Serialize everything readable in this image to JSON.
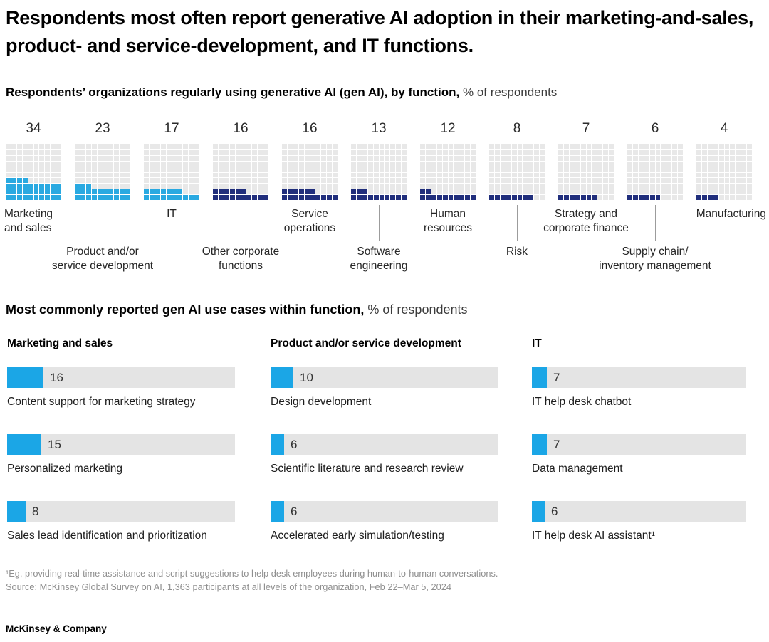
{
  "title": "Respondents most often report generative AI adoption in their marketing-and-sales, product- and service-development, and IT functions.",
  "colors": {
    "cyan": "#29a9e1",
    "navy": "#202e7c",
    "bar_fill": "#1ba6e6",
    "empty_cell": "#e8e8e8",
    "bar_track": "#e4e4e4",
    "footnote_grey": "#8f8f8f"
  },
  "function_chart": {
    "heading_bold": "Respondents’ organizations regularly using generative AI (gen AI), by function,",
    "heading_light": " % of respondents",
    "items": [
      {
        "label": "Marketing and sales",
        "label_lines": [
          "Marketing",
          "and sales"
        ],
        "value": 34,
        "color": "cyan",
        "tier": 1
      },
      {
        "label": "Product and/or service development",
        "label_lines": [
          "Product and/or",
          "service development"
        ],
        "value": 23,
        "color": "cyan",
        "tier": 2
      },
      {
        "label": "IT",
        "label_lines": [
          "IT"
        ],
        "value": 17,
        "color": "cyan",
        "tier": 1
      },
      {
        "label": "Other corporate functions",
        "label_lines": [
          "Other corporate",
          "functions"
        ],
        "value": 16,
        "color": "navy",
        "tier": 2
      },
      {
        "label": "Service operations",
        "label_lines": [
          "Service",
          "operations"
        ],
        "value": 16,
        "color": "navy",
        "tier": 1
      },
      {
        "label": "Software engineering",
        "label_lines": [
          "Software",
          "engineering"
        ],
        "value": 13,
        "color": "navy",
        "tier": 2
      },
      {
        "label": "Human resources",
        "label_lines": [
          "Human",
          "resources"
        ],
        "value": 12,
        "color": "navy",
        "tier": 1
      },
      {
        "label": "Risk",
        "label_lines": [
          "Risk"
        ],
        "value": 8,
        "color": "navy",
        "tier": 2
      },
      {
        "label": "Strategy and corporate finance",
        "label_lines": [
          "Strategy and",
          "corporate finance"
        ],
        "value": 7,
        "color": "navy",
        "tier": 1
      },
      {
        "label": "Supply chain/ inventory management",
        "label_lines": [
          "Supply chain/",
          "inventory management"
        ],
        "value": 6,
        "color": "navy",
        "tier": 2
      },
      {
        "label": "Manufacturing",
        "label_lines": [
          "Manufacturing"
        ],
        "value": 4,
        "color": "navy",
        "tier": 1
      }
    ]
  },
  "use_case_section": {
    "heading_bold": "Most commonly reported gen AI use cases within function,",
    "heading_light": " % of respondents",
    "columns": [
      {
        "header": "Marketing and sales",
        "bars": [
          {
            "label": "Content support for marketing strategy",
            "value": 16
          },
          {
            "label": "Personalized marketing",
            "value": 15
          },
          {
            "label": "Sales lead identification and prioritization",
            "value": 8
          }
        ]
      },
      {
        "header": "Product and/or service development",
        "bars": [
          {
            "label": "Design development",
            "value": 10
          },
          {
            "label": "Scientific literature and research review",
            "value": 6
          },
          {
            "label": "Accelerated early simulation/testing",
            "value": 6
          }
        ]
      },
      {
        "header": "IT",
        "bars": [
          {
            "label": "IT help desk chatbot",
            "value": 7
          },
          {
            "label": "Data management",
            "value": 7
          },
          {
            "label": "IT help desk AI assistant¹",
            "value": 6
          }
        ]
      }
    ]
  },
  "footnotes": [
    "¹Eg, providing real-time assistance and script suggestions to help desk employees during human-to-human conversations.",
    "Source: McKinsey Global Survey on AI, 1,363 participants at all levels of the organization, Feb 22–Mar 5, 2024"
  ],
  "footer": "McKinsey & Company",
  "chart_data": [
    {
      "type": "waffle",
      "note": "unit chart, one 10x10 grid per category, each small square = 1% of respondents, filled bottom-up left-to-right",
      "title": "Respondents’ organizations regularly using generative AI (gen AI), by function, % of respondents",
      "categories": [
        "Marketing and sales",
        "Product and/or service development",
        "IT",
        "Other corporate functions",
        "Service operations",
        "Software engineering",
        "Human resources",
        "Risk",
        "Strategy and corporate finance",
        "Supply chain/ inventory management",
        "Manufacturing"
      ],
      "values": [
        34,
        23,
        17,
        16,
        16,
        13,
        12,
        8,
        7,
        6,
        4
      ],
      "fill_colors": [
        "cyan",
        "cyan",
        "cyan",
        "navy",
        "navy",
        "navy",
        "navy",
        "navy",
        "navy",
        "navy",
        "navy"
      ],
      "value_labels_position": "above each grid"
    },
    {
      "type": "bar",
      "note": "horizontal bars on grey 0-100% tracks, grouped in three columns by function",
      "title": "Most commonly reported gen AI use cases within function, % of respondents",
      "series": [
        {
          "name": "Marketing and sales",
          "categories": [
            "Content support for marketing strategy",
            "Personalized marketing",
            "Sales lead identification and prioritization"
          ],
          "values": [
            16,
            15,
            8
          ]
        },
        {
          "name": "Product and/or service development",
          "categories": [
            "Design development",
            "Scientific literature and research review",
            "Accelerated early simulation/testing"
          ],
          "values": [
            10,
            6,
            6
          ]
        },
        {
          "name": "IT",
          "categories": [
            "IT help desk chatbot",
            "Data management",
            "IT help desk AI assistant¹"
          ],
          "values": [
            7,
            7,
            6
          ]
        }
      ],
      "xlim": [
        0,
        100
      ],
      "grid": false,
      "legend": false
    }
  ]
}
